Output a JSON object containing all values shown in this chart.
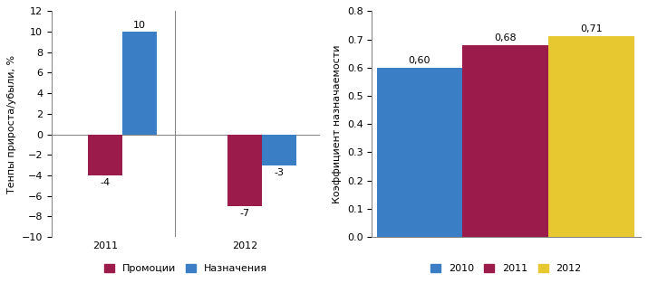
{
  "left_chart": {
    "groups": [
      "2011",
      "2012"
    ],
    "promo_values": [
      -4,
      -7
    ],
    "naznach_values": [
      10,
      -3
    ],
    "promo_color": "#9B1B4B",
    "naznach_color": "#3A7EC6",
    "ylim": [
      -10,
      12
    ],
    "yticks": [
      -10,
      -8,
      -6,
      -4,
      -2,
      0,
      2,
      4,
      6,
      8,
      10,
      12
    ],
    "ylabel": "Тенпы прироста/убыли, %",
    "legend_promo": "Промоции",
    "legend_naznach": "Назначения"
  },
  "right_chart": {
    "categories": [
      "2010",
      "2011",
      "2012"
    ],
    "values": [
      0.6,
      0.68,
      0.71
    ],
    "colors": [
      "#3A7EC6",
      "#9B1B4B",
      "#E8C830"
    ],
    "ylim": [
      0,
      0.8
    ],
    "yticks": [
      0,
      0.1,
      0.2,
      0.3,
      0.4,
      0.5,
      0.6,
      0.7,
      0.8
    ],
    "ylabel": "Коэффициент назначаемости"
  },
  "fontsize": 8,
  "label_fontsize": 8
}
